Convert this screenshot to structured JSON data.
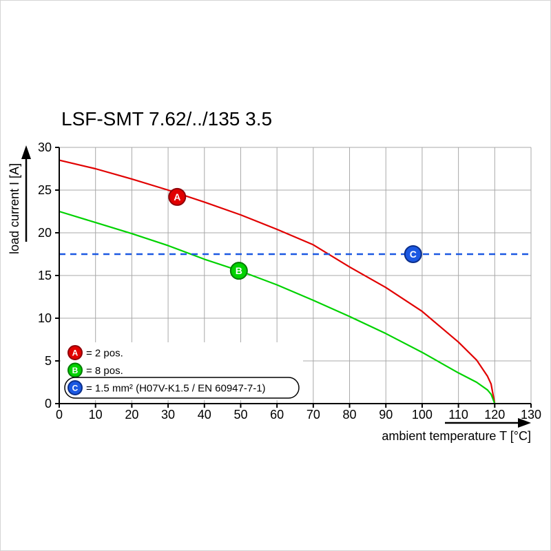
{
  "chart_data": {
    "type": "line",
    "title": "LSF-SMT 7.62/../135 3.5",
    "xlabel": "ambient temperature T [°C]",
    "ylabel": "load current I [A]",
    "xlim": [
      0,
      130
    ],
    "ylim": [
      0,
      30
    ],
    "xticks": [
      0,
      10,
      20,
      30,
      40,
      50,
      60,
      70,
      80,
      90,
      100,
      110,
      120,
      130
    ],
    "yticks": [
      0,
      5,
      10,
      15,
      20,
      25,
      30
    ],
    "grid": true,
    "grid_color": "#a8a8a8",
    "legend_position": "bottom-left-inside",
    "series": [
      {
        "id": "A",
        "letter": "A",
        "legend_label": "= 2 pos.",
        "color": "#e10000",
        "edge_color": "#8f0008",
        "points": [
          [
            0,
            28.5
          ],
          [
            10,
            27.5
          ],
          [
            20,
            26.3
          ],
          [
            30,
            25.0
          ],
          [
            40,
            23.6
          ],
          [
            50,
            22.1
          ],
          [
            60,
            20.4
          ],
          [
            70,
            18.6
          ],
          [
            80,
            16.0
          ],
          [
            90,
            13.6
          ],
          [
            100,
            10.8
          ],
          [
            110,
            7.2
          ],
          [
            115,
            5.1
          ],
          [
            118,
            3.2
          ],
          [
            119,
            2.3
          ],
          [
            120,
            0
          ]
        ],
        "marker": {
          "x": 32.5,
          "y": 24.2
        }
      },
      {
        "id": "B",
        "letter": "B",
        "legend_label": "= 8 pos.",
        "color": "#00d200",
        "edge_color": "#007a00",
        "points": [
          [
            0,
            22.5
          ],
          [
            10,
            21.2
          ],
          [
            20,
            19.9
          ],
          [
            30,
            18.5
          ],
          [
            40,
            16.9
          ],
          [
            50,
            15.5
          ],
          [
            60,
            13.9
          ],
          [
            70,
            12.1
          ],
          [
            80,
            10.2
          ],
          [
            90,
            8.2
          ],
          [
            100,
            6.0
          ],
          [
            110,
            3.6
          ],
          [
            115,
            2.5
          ],
          [
            118,
            1.6
          ],
          [
            119,
            1.1
          ],
          [
            120,
            0
          ]
        ],
        "marker": {
          "x": 49.5,
          "y": 15.55
        }
      },
      {
        "id": "C",
        "letter": "C",
        "legend_label": "= 1.5 mm² (H07V-K1.5 / EN 60947-7-1)",
        "color": "#1b58e2",
        "edge_color": "#0b2e8a",
        "style": "dashed",
        "const_y": 17.5,
        "marker": {
          "x": 97.5,
          "y": 17.5
        },
        "legend_boxed": true
      }
    ]
  }
}
